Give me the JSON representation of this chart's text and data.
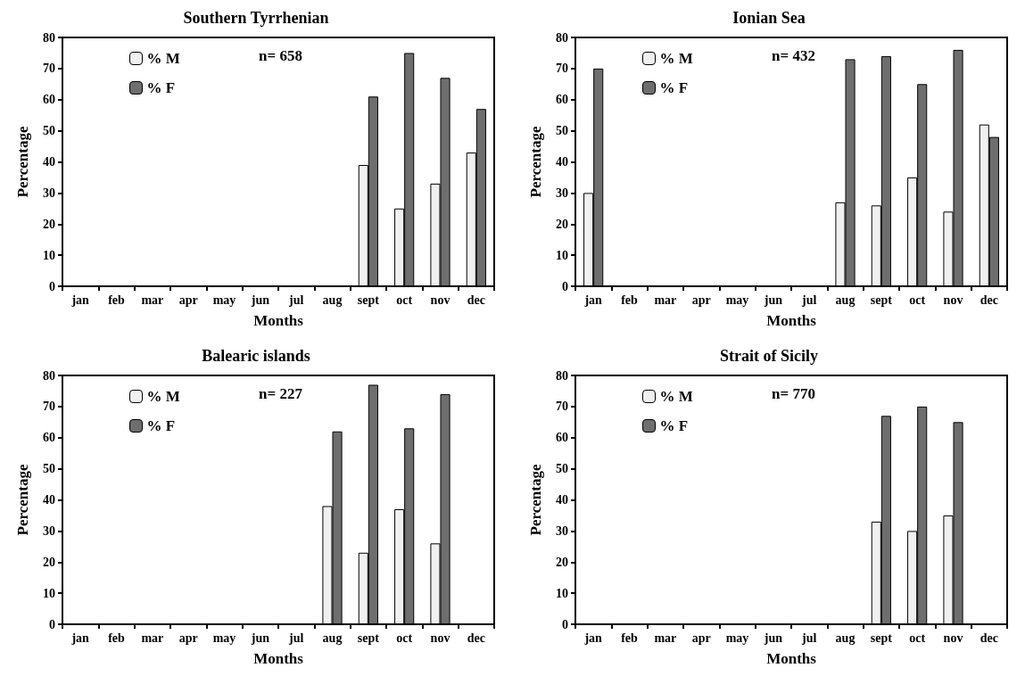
{
  "chart_data": [
    {
      "type": "bar",
      "title": "Southern Tyrrhenian",
      "xlabel": "Months",
      "ylabel": "Percentage",
      "categories": [
        "jan",
        "feb",
        "mar",
        "apr",
        "may",
        "jun",
        "jul",
        "aug",
        "sept",
        "oct",
        "nov",
        "dec"
      ],
      "series": [
        {
          "name": "% M",
          "color": "#f0f0f0",
          "values": [
            0,
            0,
            0,
            0,
            0,
            0,
            0,
            0,
            39,
            25,
            33,
            43
          ]
        },
        {
          "name": "% F",
          "color": "#6e6e6e",
          "values": [
            0,
            0,
            0,
            0,
            0,
            0,
            0,
            0,
            61,
            75,
            67,
            57
          ]
        }
      ],
      "ylim": [
        0,
        80
      ],
      "yticks": [
        0,
        10,
        20,
        30,
        40,
        50,
        60,
        70,
        80
      ],
      "grid": false,
      "legend": "top left",
      "annotations": [
        "n= 658"
      ]
    },
    {
      "type": "bar",
      "title": "Ionian Sea",
      "xlabel": "Months",
      "ylabel": "Percentage",
      "categories": [
        "jan",
        "feb",
        "mar",
        "apr",
        "may",
        "jun",
        "jul",
        "aug",
        "sept",
        "oct",
        "nov",
        "dec"
      ],
      "series": [
        {
          "name": "% M",
          "color": "#f0f0f0",
          "values": [
            30,
            0,
            0,
            0,
            0,
            0,
            0,
            27,
            26,
            35,
            24,
            52
          ]
        },
        {
          "name": "% F",
          "color": "#6e6e6e",
          "values": [
            70,
            0,
            0,
            0,
            0,
            0,
            0,
            73,
            74,
            65,
            76,
            48
          ]
        }
      ],
      "ylim": [
        0,
        80
      ],
      "yticks": [
        0,
        10,
        20,
        30,
        40,
        50,
        60,
        70,
        80
      ],
      "grid": false,
      "legend": "top left",
      "annotations": [
        "n= 432"
      ]
    },
    {
      "type": "bar",
      "title": "Balearic islands",
      "xlabel": "Months",
      "ylabel": "Percentage",
      "categories": [
        "jan",
        "feb",
        "mar",
        "apr",
        "may",
        "jun",
        "jul",
        "aug",
        "sept",
        "oct",
        "nov",
        "dec"
      ],
      "series": [
        {
          "name": "% M",
          "color": "#f0f0f0",
          "values": [
            0,
            0,
            0,
            0,
            0,
            0,
            0,
            38,
            23,
            37,
            26,
            0
          ]
        },
        {
          "name": "% F",
          "color": "#6e6e6e",
          "values": [
            0,
            0,
            0,
            0,
            0,
            0,
            0,
            62,
            77,
            63,
            74,
            0
          ]
        }
      ],
      "ylim": [
        0,
        80
      ],
      "yticks": [
        0,
        10,
        20,
        30,
        40,
        50,
        60,
        70,
        80
      ],
      "grid": false,
      "legend": "top left",
      "annotations": [
        "n= 227"
      ]
    },
    {
      "type": "bar",
      "title": "Strait of Sicily",
      "xlabel": "Months",
      "ylabel": "Percentage",
      "categories": [
        "jan",
        "feb",
        "mar",
        "apr",
        "may",
        "jun",
        "jul",
        "aug",
        "sept",
        "oct",
        "nov",
        "dec"
      ],
      "series": [
        {
          "name": "% M",
          "color": "#f0f0f0",
          "values": [
            0,
            0,
            0,
            0,
            0,
            0,
            0,
            0,
            33,
            30,
            35,
            0
          ]
        },
        {
          "name": "% F",
          "color": "#6e6e6e",
          "values": [
            0,
            0,
            0,
            0,
            0,
            0,
            0,
            0,
            67,
            70,
            65,
            0
          ]
        }
      ],
      "ylim": [
        0,
        80
      ],
      "yticks": [
        0,
        10,
        20,
        30,
        40,
        50,
        60,
        70,
        80
      ],
      "grid": false,
      "legend": "top left",
      "annotations": [
        "n= 770"
      ]
    }
  ]
}
